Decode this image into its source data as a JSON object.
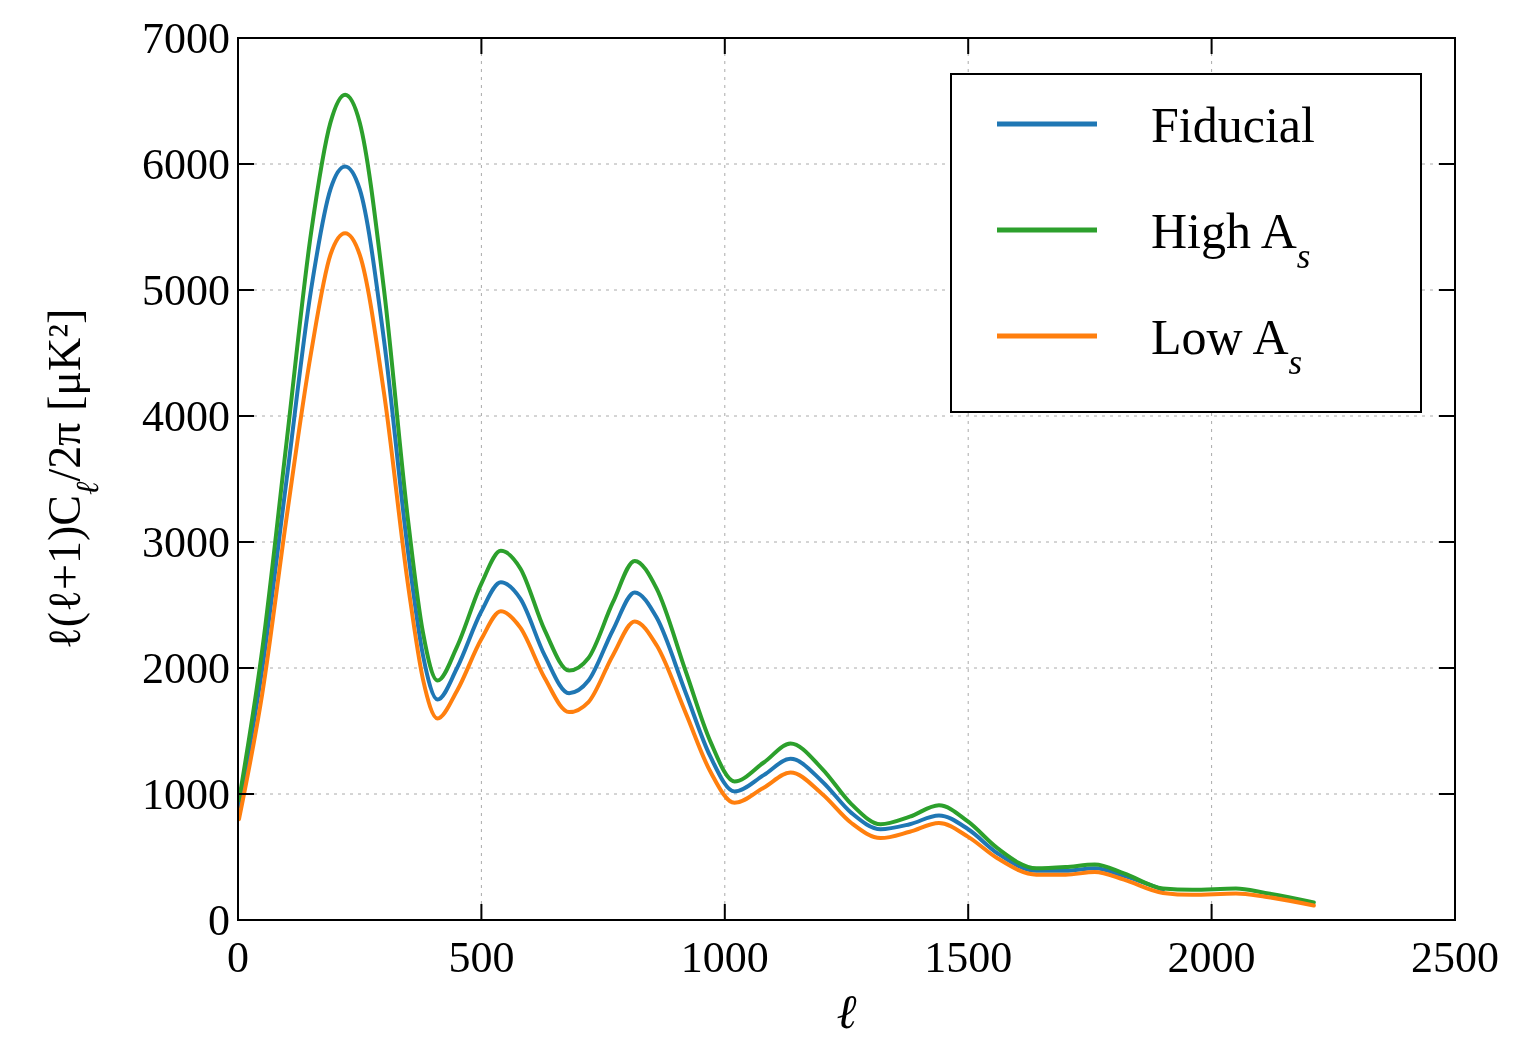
{
  "chart_data": {
    "type": "line",
    "xlabel": "ℓ",
    "ylabel": "ℓ(ℓ+1)C$_{ℓ}$/2π [μK²]",
    "x": [
      2,
      50,
      100,
      150,
      190,
      220,
      250,
      300,
      350,
      380,
      410,
      450,
      500,
      540,
      580,
      630,
      680,
      720,
      770,
      815,
      860,
      920,
      970,
      1020,
      1080,
      1135,
      1200,
      1260,
      1320,
      1380,
      1440,
      1500,
      1560,
      1640,
      1700,
      1760,
      1820,
      1900,
      1960,
      2050,
      2110,
      2210
    ],
    "series": [
      {
        "name": "Fiducial",
        "color": "#1f77b4",
        "values": [
          900,
          2000,
          3500,
          5000,
          5800,
          5980,
          5800,
          4600,
          2900,
          2100,
          1750,
          2000,
          2450,
          2680,
          2550,
          2100,
          1800,
          1900,
          2300,
          2600,
          2400,
          1800,
          1300,
          1020,
          1150,
          1280,
          1100,
          850,
          720,
          760,
          830,
          720,
          530,
          390,
          390,
          410,
          350,
          240,
          null,
          null,
          null,
          null
        ]
      },
      {
        "name": "High A$_{s}$",
        "color": "#2ca02c",
        "values": [
          950,
          2150,
          3800,
          5450,
          6330,
          6550,
          6330,
          5000,
          3150,
          2280,
          1900,
          2170,
          2670,
          2930,
          2790,
          2300,
          1980,
          2080,
          2520,
          2850,
          2630,
          1970,
          1420,
          1100,
          1250,
          1400,
          1200,
          920,
          760,
          820,
          910,
          780,
          570,
          410,
          420,
          440,
          370,
          250,
          240,
          250,
          215,
          140
        ]
      },
      {
        "name": "Low A$_{s}$",
        "color": "#ff7f0e",
        "values": [
          800,
          1800,
          3200,
          4500,
          5280,
          5450,
          5280,
          4180,
          2640,
          1910,
          1600,
          1820,
          2230,
          2450,
          2320,
          1920,
          1650,
          1730,
          2100,
          2370,
          2180,
          1640,
          1180,
          930,
          1050,
          1170,
          1000,
          770,
          650,
          700,
          770,
          660,
          490,
          360,
          360,
          380,
          320,
          215,
          200,
          210,
          185,
          115
        ]
      }
    ],
    "xlim": [
      0,
      2500
    ],
    "xticks": [
      0,
      500,
      1000,
      1500,
      2000,
      2500
    ],
    "ylim": [
      0,
      7000
    ],
    "yticks": [
      0,
      1000,
      2000,
      3000,
      4000,
      5000,
      6000,
      7000
    ],
    "grid": true,
    "legend": "top right",
    "line_style": "solid",
    "marker": "none"
  }
}
